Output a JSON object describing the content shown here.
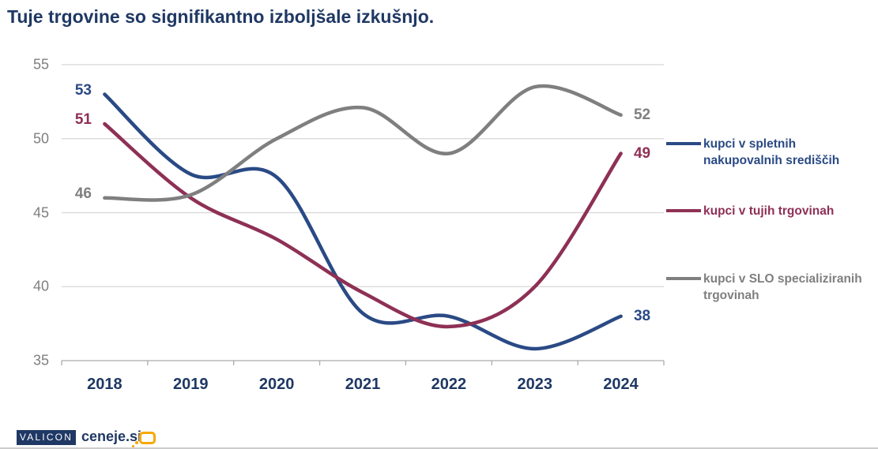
{
  "title": "Tuje trgovine so signifikantno izboljšale izkušnjo.",
  "chart_data": {
    "type": "line",
    "title": "Tuje trgovine so signifikantno izboljšale izkušnjo.",
    "x": [
      "2018",
      "2019",
      "2020",
      "2021",
      "2022",
      "2023",
      "2024"
    ],
    "xlabel": "",
    "ylabel": "",
    "ylim": [
      35,
      55
    ],
    "yticks": [
      55,
      50,
      45,
      40,
      35
    ],
    "grid": true,
    "smoothed": true,
    "legend_position": "right",
    "series": [
      {
        "name": "kupci v spletnih nakupovalnih središčih",
        "color": "#2a4a85",
        "values": [
          53,
          47.6,
          47.4,
          38.2,
          38,
          35.8,
          38
        ],
        "start_label": "53",
        "end_label": "38"
      },
      {
        "name": "kupci v tujih trgovinah",
        "color": "#8e3055",
        "values": [
          51,
          46,
          43.2,
          39.6,
          37.3,
          40,
          49
        ],
        "start_label": "51",
        "end_label": "49"
      },
      {
        "name": "kupci v SLO specializiranih trgovinah",
        "color": "#7f7f7f",
        "values": [
          46,
          46.2,
          50,
          52.1,
          49,
          53.5,
          51.6
        ],
        "start_label": "46",
        "end_label": "52"
      }
    ]
  },
  "legend": {
    "items": [
      {
        "lines": [
          "kupci v spletnih",
          "nakupovalnih središčih"
        ]
      },
      {
        "lines": [
          "kupci v tujih trgovinah"
        ]
      },
      {
        "lines": [
          "kupci v SLO specializiranih",
          "trgovinah"
        ]
      }
    ]
  },
  "colors": {
    "navy": "#1f3864",
    "grid": "#d6d6d6",
    "axis": "#aaaaaa",
    "tick_label": "#7f7f7f",
    "orange": "#f7a800"
  },
  "footer": {
    "valicon_label": "VALICON",
    "ceneje_label": "ceneje.si"
  }
}
